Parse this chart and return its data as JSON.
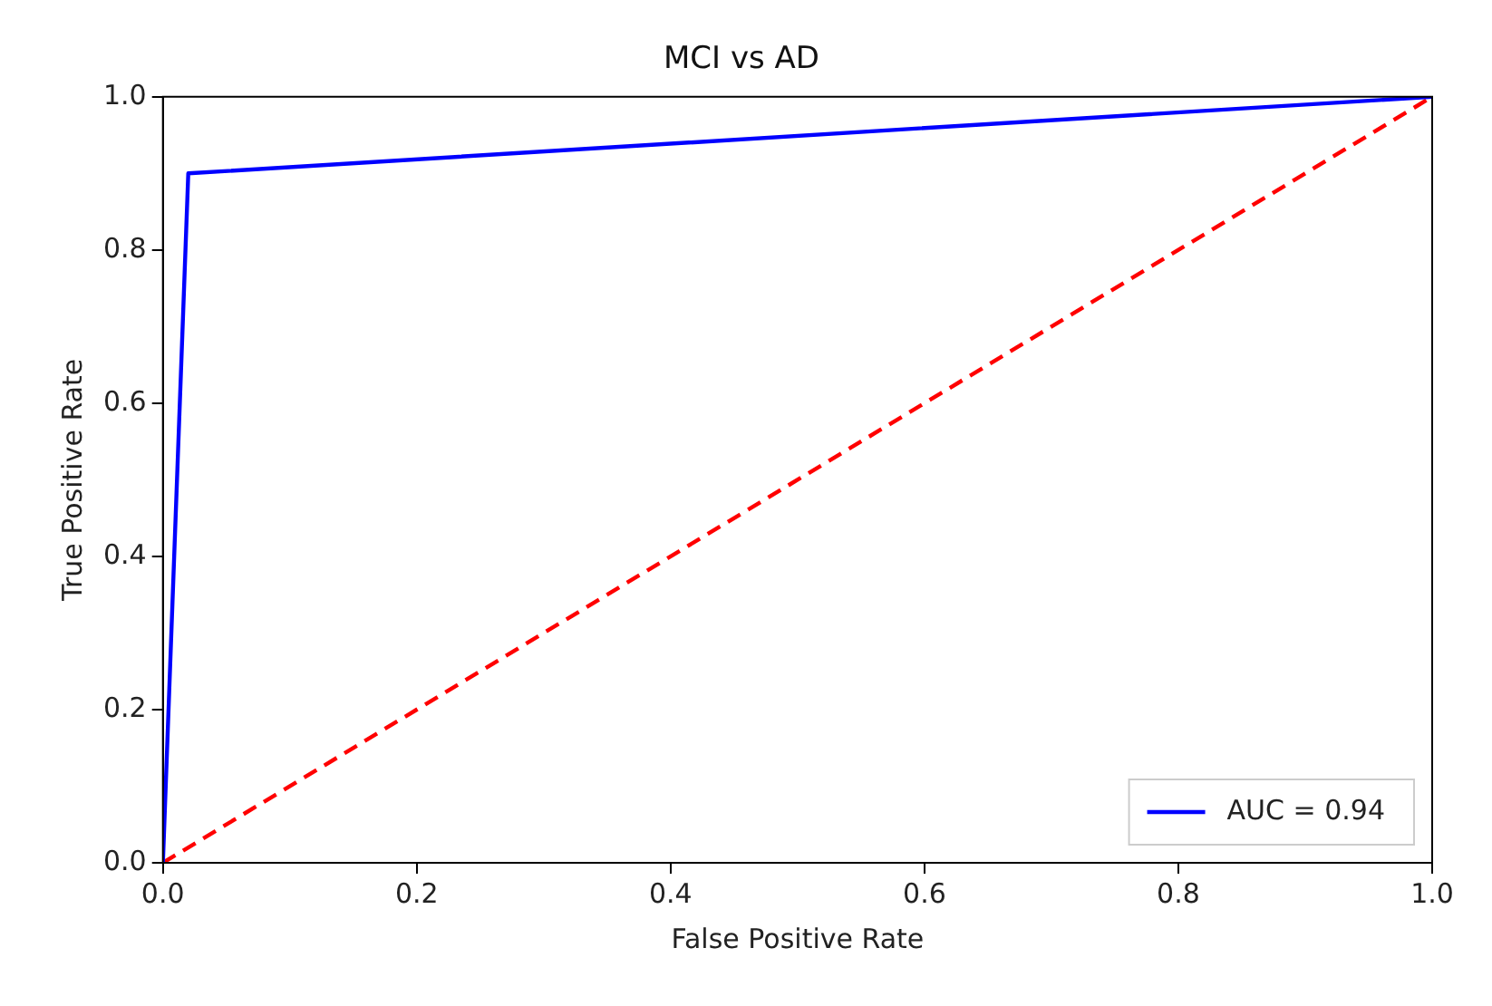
{
  "chart_data": {
    "type": "line",
    "title": "MCI vs AD",
    "xlabel": "False Positive Rate",
    "ylabel": "True Positive Rate",
    "series": [
      {
        "name": "AUC = 0.94",
        "color": "#0000ff",
        "x": [
          0,
          0.02,
          1
        ],
        "values": [
          0,
          0.9,
          1
        ],
        "line_style": "solid"
      },
      {
        "color": "#ff0000",
        "x": [
          0,
          1
        ],
        "values": [
          0,
          1
        ],
        "line_style": "dashed"
      }
    ],
    "xlim": [
      0,
      1
    ],
    "ylim": [
      0,
      1
    ],
    "xticks": [
      {
        "value": 0,
        "label": "0.0"
      },
      0.2,
      0.4,
      0.6,
      0.8,
      {
        "value": 1,
        "label": "1.0"
      }
    ],
    "yticks": [
      {
        "value": 0,
        "label": "0.0"
      },
      0.2,
      0.4,
      0.6,
      0.8,
      {
        "value": 1,
        "label": "1.0"
      }
    ],
    "grid": false,
    "legend": "bottom right",
    "marker": "none"
  }
}
